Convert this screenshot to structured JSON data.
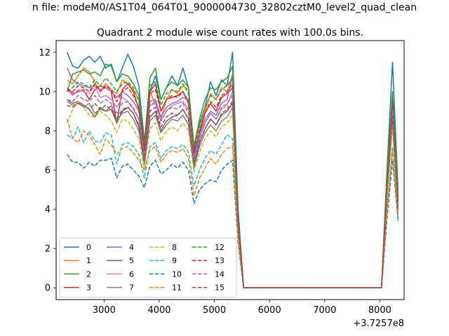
{
  "figure": {
    "suptitle": "n file: modeM0/AS1T04_064T01_9000004730_32802cztM0_level2_quad_clean",
    "title": "Quadrant 2 module wise count rates with 100.0s bins.",
    "offset_text": "+3.7257e8"
  },
  "chart_data": {
    "type": "line",
    "title": "Quadrant 2 module wise count rates with 100.0s bins.",
    "xlabel": "",
    "ylabel": "",
    "x_offset": 372570000,
    "xlim": [
      2130,
      8440
    ],
    "ylim": [
      -0.6,
      12.6
    ],
    "xticks": [
      3000,
      4000,
      5000,
      6000,
      7000,
      8000
    ],
    "yticks": [
      0,
      2,
      4,
      6,
      8,
      10,
      12
    ],
    "grid": false,
    "legend": {
      "placement": "lower-left",
      "ncol": 4
    },
    "x": [
      2330,
      2430,
      2530,
      2630,
      2730,
      2830,
      2930,
      3030,
      3130,
      3230,
      3330,
      3430,
      3530,
      3630,
      3730,
      3830,
      3930,
      4030,
      4130,
      4230,
      4330,
      4430,
      4530,
      4630,
      4730,
      4830,
      4930,
      5030,
      5130,
      5230,
      5330,
      5430,
      5530,
      5630,
      5730,
      5830,
      5930,
      6030,
      6130,
      6230,
      6330,
      6430,
      6530,
      6630,
      6730,
      6830,
      6930,
      7030,
      7130,
      7230,
      7330,
      7430,
      7530,
      7630,
      7730,
      7830,
      7930,
      8030,
      8130,
      8230,
      8330
    ],
    "series": [
      {
        "name": "0",
        "color": "#1f77b4",
        "dash": "solid",
        "values": [
          12.0,
          11.3,
          11.2,
          11.6,
          11.8,
          11.5,
          11.8,
          11.2,
          11.4,
          10.5,
          11.2,
          11.9,
          11.3,
          10.3,
          7.5,
          10.0,
          10.8,
          9.6,
          10.2,
          10.8,
          10.3,
          11.2,
          10.2,
          7.0,
          8.4,
          9.2,
          10.5,
          9.8,
          10.6,
          10.3,
          12.0,
          4.0,
          0,
          0,
          0,
          0,
          0,
          0,
          0,
          0,
          0,
          0,
          0,
          0,
          0,
          0,
          0,
          0,
          0,
          0,
          0,
          0,
          0,
          0,
          0,
          0,
          0,
          0,
          6.0,
          11.5,
          5.0
        ]
      },
      {
        "name": "1",
        "color": "#ff7f0e",
        "dash": "solid",
        "values": [
          10.6,
          10.4,
          10.8,
          11.2,
          11.0,
          10.5,
          10.0,
          10.4,
          10.1,
          9.9,
          10.6,
          10.4,
          10.1,
          9.6,
          7.0,
          10.0,
          9.4,
          8.6,
          9.6,
          10.1,
          9.9,
          10.3,
          10.1,
          7.2,
          8.2,
          9.0,
          9.9,
          9.6,
          10.2,
          10.0,
          10.9,
          3.5,
          0,
          0,
          0,
          0,
          0,
          0,
          0,
          0,
          0,
          0,
          0,
          0,
          0,
          0,
          0,
          0,
          0,
          0,
          0,
          0,
          0,
          0,
          0,
          0,
          0,
          0,
          5.5,
          9.7,
          4.5
        ]
      },
      {
        "name": "2",
        "color": "#2ca02c",
        "dash": "solid",
        "values": [
          10.0,
          10.9,
          11.0,
          11.1,
          10.9,
          11.0,
          10.8,
          11.4,
          11.3,
          10.5,
          10.9,
          10.8,
          10.4,
          9.8,
          7.3,
          10.7,
          11.2,
          9.6,
          10.2,
          10.5,
          10.3,
          10.6,
          10.2,
          7.2,
          8.6,
          9.6,
          10.2,
          10.1,
          10.5,
          10.7,
          11.3,
          3.8,
          0,
          0,
          0,
          0,
          0,
          0,
          0,
          0,
          0,
          0,
          0,
          0,
          0,
          0,
          0,
          0,
          0,
          0,
          0,
          0,
          0,
          0,
          0,
          0,
          0,
          0,
          5.8,
          10.0,
          4.8
        ]
      },
      {
        "name": "3",
        "color": "#d62728",
        "dash": "solid",
        "values": [
          10.2,
          9.9,
          10.0,
          10.1,
          9.6,
          10.1,
          10.3,
          10.2,
          10.0,
          8.4,
          10.1,
          10.4,
          10.0,
          9.1,
          7.2,
          10.0,
          10.4,
          9.0,
          9.6,
          9.7,
          9.8,
          10.0,
          9.4,
          6.8,
          7.9,
          8.9,
          9.4,
          9.0,
          9.7,
          9.9,
          10.2,
          3.5,
          0,
          0,
          0,
          0,
          0,
          0,
          0,
          0,
          0,
          0,
          0,
          0,
          0,
          0,
          0,
          0,
          0,
          0,
          0,
          0,
          0,
          0,
          0,
          0,
          0,
          0,
          5.4,
          9.6,
          4.3
        ]
      },
      {
        "name": "4",
        "color": "#9467bd",
        "dash": "solid",
        "values": [
          11.2,
          10.6,
          10.4,
          10.3,
          10.2,
          10.3,
          10.1,
          10.2,
          10.0,
          9.7,
          10.0,
          9.8,
          9.5,
          9.0,
          6.8,
          9.5,
          9.6,
          8.7,
          9.2,
          9.4,
          9.5,
          9.7,
          9.6,
          6.7,
          7.8,
          8.6,
          9.0,
          8.8,
          9.4,
          9.6,
          10.8,
          3.3,
          0,
          0,
          0,
          0,
          0,
          0,
          0,
          0,
          0,
          0,
          0,
          0,
          0,
          0,
          0,
          0,
          0,
          0,
          0,
          0,
          0,
          0,
          0,
          0,
          0,
          0,
          5.2,
          9.3,
          4.4
        ]
      },
      {
        "name": "5",
        "color": "#8c564b",
        "dash": "solid",
        "values": [
          9.6,
          9.4,
          9.5,
          9.3,
          9.1,
          8.7,
          9.2,
          9.0,
          9.1,
          8.4,
          9.0,
          9.2,
          8.9,
          8.2,
          6.5,
          8.7,
          9.0,
          8.0,
          8.5,
          8.7,
          8.8,
          9.1,
          8.6,
          6.3,
          7.4,
          8.1,
          8.6,
          8.3,
          8.8,
          9.0,
          9.4,
          3.1,
          0,
          0,
          0,
          0,
          0,
          0,
          0,
          0,
          0,
          0,
          0,
          0,
          0,
          0,
          0,
          0,
          0,
          0,
          0,
          0,
          0,
          0,
          0,
          0,
          0,
          0,
          4.9,
          8.7,
          4.0
        ]
      },
      {
        "name": "6",
        "color": "#e377c2",
        "dash": "solid",
        "values": [
          10.1,
          9.8,
          10.1,
          10.0,
          9.9,
          10.3,
          9.7,
          9.8,
          9.6,
          9.2,
          9.7,
          9.5,
          9.1,
          8.6,
          6.7,
          9.3,
          9.4,
          8.5,
          9.0,
          9.3,
          9.4,
          9.5,
          9.1,
          6.5,
          7.6,
          8.4,
          8.9,
          8.6,
          9.1,
          9.3,
          10.0,
          3.2,
          0,
          0,
          0,
          0,
          0,
          0,
          0,
          0,
          0,
          0,
          0,
          0,
          0,
          0,
          0,
          0,
          0,
          0,
          0,
          0,
          0,
          0,
          0,
          0,
          0,
          0,
          5.0,
          9.0,
          4.2
        ]
      },
      {
        "name": "7",
        "color": "#7f7f7f",
        "dash": "solid",
        "values": [
          9.5,
          9.3,
          9.4,
          9.2,
          9.4,
          8.9,
          9.1,
          9.0,
          9.3,
          8.5,
          8.9,
          9.0,
          8.6,
          8.0,
          6.3,
          8.5,
          8.8,
          7.9,
          8.3,
          8.6,
          8.5,
          8.8,
          8.3,
          6.1,
          7.2,
          7.9,
          8.3,
          8.0,
          8.5,
          8.7,
          9.2,
          3.0,
          0,
          0,
          0,
          0,
          0,
          0,
          0,
          0,
          0,
          0,
          0,
          0,
          0,
          0,
          0,
          0,
          0,
          0,
          0,
          0,
          0,
          0,
          0,
          0,
          0,
          0,
          4.8,
          8.5,
          3.9
        ]
      },
      {
        "name": "8",
        "color": "#bcbd22",
        "dash": "dashed",
        "values": [
          8.4,
          9.1,
          9.5,
          9.2,
          8.8,
          8.7,
          9.0,
          8.8,
          8.5,
          7.9,
          8.6,
          8.5,
          8.1,
          7.6,
          6.0,
          8.1,
          8.4,
          7.5,
          8.0,
          8.2,
          8.0,
          8.4,
          8.0,
          5.9,
          6.9,
          7.6,
          8.0,
          7.7,
          8.2,
          8.4,
          8.8,
          2.9,
          0,
          0,
          0,
          0,
          0,
          0,
          0,
          0,
          0,
          0,
          0,
          0,
          0,
          0,
          0,
          0,
          0,
          0,
          0,
          0,
          0,
          0,
          0,
          0,
          0,
          0,
          4.6,
          8.2,
          3.8
        ]
      },
      {
        "name": "9",
        "color": "#17becf",
        "dash": "dashed",
        "values": [
          7.8,
          7.6,
          8.2,
          7.4,
          8.0,
          7.5,
          7.4,
          7.9,
          7.8,
          6.3,
          7.3,
          7.4,
          7.2,
          6.8,
          5.6,
          7.2,
          7.4,
          6.6,
          7.0,
          7.2,
          7.1,
          7.3,
          6.9,
          5.2,
          6.0,
          6.6,
          7.0,
          6.8,
          7.3,
          7.8,
          7.6,
          2.6,
          0,
          0,
          0,
          0,
          0,
          0,
          0,
          0,
          0,
          0,
          0,
          0,
          0,
          0,
          0,
          0,
          0,
          0,
          0,
          0,
          0,
          0,
          0,
          0,
          0,
          0,
          4.0,
          7.2,
          3.4
        ]
      },
      {
        "name": "10",
        "color": "#1f77b4",
        "dash": "dashed",
        "values": [
          6.8,
          6.4,
          6.4,
          6.1,
          6.4,
          6.2,
          6.5,
          6.5,
          6.6,
          5.6,
          6.2,
          6.3,
          6.0,
          5.7,
          5.1,
          6.2,
          6.5,
          5.8,
          6.0,
          6.3,
          6.1,
          6.4,
          6.0,
          4.3,
          5.0,
          5.3,
          5.5,
          5.4,
          6.0,
          6.3,
          6.5,
          2.3,
          0,
          0,
          0,
          0,
          0,
          0,
          0,
          0,
          0,
          0,
          0,
          0,
          0,
          0,
          0,
          0,
          0,
          0,
          0,
          0,
          0,
          0,
          0,
          0,
          0,
          0,
          3.5,
          6.5,
          3.5
        ]
      },
      {
        "name": "11",
        "color": "#ff7f0e",
        "dash": "dashed",
        "values": [
          8.6,
          7.6,
          7.4,
          8.0,
          7.8,
          7.3,
          6.8,
          7.6,
          7.3,
          6.8,
          7.1,
          7.2,
          6.9,
          6.5,
          6.0,
          7.0,
          7.2,
          6.4,
          6.8,
          7.0,
          6.9,
          7.1,
          6.6,
          4.7,
          5.6,
          6.1,
          6.6,
          6.3,
          6.8,
          7.1,
          7.2,
          2.5,
          0,
          0,
          0,
          0,
          0,
          0,
          0,
          0,
          0,
          0,
          0,
          0,
          0,
          0,
          0,
          0,
          0,
          0,
          0,
          0,
          0,
          0,
          0,
          0,
          0,
          0,
          3.9,
          7.0,
          3.7
        ]
      },
      {
        "name": "12",
        "color": "#2ca02c",
        "dash": "dashed",
        "values": [
          10.0,
          10.2,
          10.5,
          10.4,
          10.2,
          10.6,
          10.3,
          10.7,
          10.4,
          10.0,
          10.4,
          10.5,
          10.2,
          9.5,
          7.2,
          10.3,
          10.5,
          9.3,
          9.9,
          10.1,
          10.0,
          10.4,
          9.9,
          7.1,
          8.3,
          9.2,
          9.8,
          9.6,
          10.1,
          10.3,
          10.7,
          3.6,
          0,
          0,
          0,
          0,
          0,
          0,
          0,
          0,
          0,
          0,
          0,
          0,
          0,
          0,
          0,
          0,
          0,
          0,
          0,
          0,
          0,
          0,
          0,
          0,
          0,
          0,
          5.6,
          9.8,
          4.6
        ]
      },
      {
        "name": "13",
        "color": "#d62728",
        "dash": "dashed",
        "values": [
          10.1,
          10.0,
          10.3,
          10.2,
          10.0,
          10.4,
          10.0,
          10.3,
          10.1,
          9.5,
          10.0,
          10.2,
          9.8,
          9.2,
          7.0,
          9.9,
          10.1,
          9.0,
          9.6,
          9.8,
          9.7,
          10.0,
          9.5,
          6.9,
          8.0,
          8.9,
          9.5,
          9.2,
          9.8,
          10.0,
          10.4,
          3.5,
          0,
          0,
          0,
          0,
          0,
          0,
          0,
          0,
          0,
          0,
          0,
          0,
          0,
          0,
          0,
          0,
          0,
          0,
          0,
          0,
          0,
          0,
          0,
          0,
          0,
          0,
          5.4,
          9.5,
          4.4
        ]
      },
      {
        "name": "14",
        "color": "#9467bd",
        "dash": "dashed",
        "values": [
          9.6,
          9.5,
          9.8,
          9.6,
          9.5,
          9.8,
          9.4,
          9.6,
          9.4,
          8.9,
          9.4,
          9.5,
          9.2,
          8.6,
          6.7,
          9.3,
          9.5,
          8.5,
          9.0,
          9.2,
          9.1,
          9.4,
          8.9,
          6.5,
          7.6,
          8.4,
          8.9,
          8.6,
          9.2,
          9.4,
          9.8,
          3.3,
          0,
          0,
          0,
          0,
          0,
          0,
          0,
          0,
          0,
          0,
          0,
          0,
          0,
          0,
          0,
          0,
          0,
          0,
          0,
          0,
          0,
          0,
          0,
          0,
          0,
          0,
          5.1,
          9.0,
          4.2
        ]
      },
      {
        "name": "15",
        "color": "#8c564b",
        "dash": "dashed",
        "values": [
          9.3,
          9.2,
          9.4,
          9.3,
          9.1,
          9.4,
          9.1,
          9.3,
          9.1,
          8.6,
          9.1,
          9.2,
          8.9,
          8.3,
          6.5,
          9.0,
          9.2,
          8.2,
          8.7,
          8.9,
          8.8,
          9.1,
          8.6,
          6.3,
          7.4,
          8.1,
          8.6,
          8.3,
          8.9,
          9.1,
          9.5,
          3.2,
          0,
          0,
          0,
          0,
          0,
          0,
          0,
          0,
          0,
          0,
          0,
          0,
          0,
          0,
          0,
          0,
          0,
          0,
          0,
          0,
          0,
          0,
          0,
          0,
          0,
          0,
          4.9,
          8.7,
          4.1
        ]
      }
    ]
  }
}
